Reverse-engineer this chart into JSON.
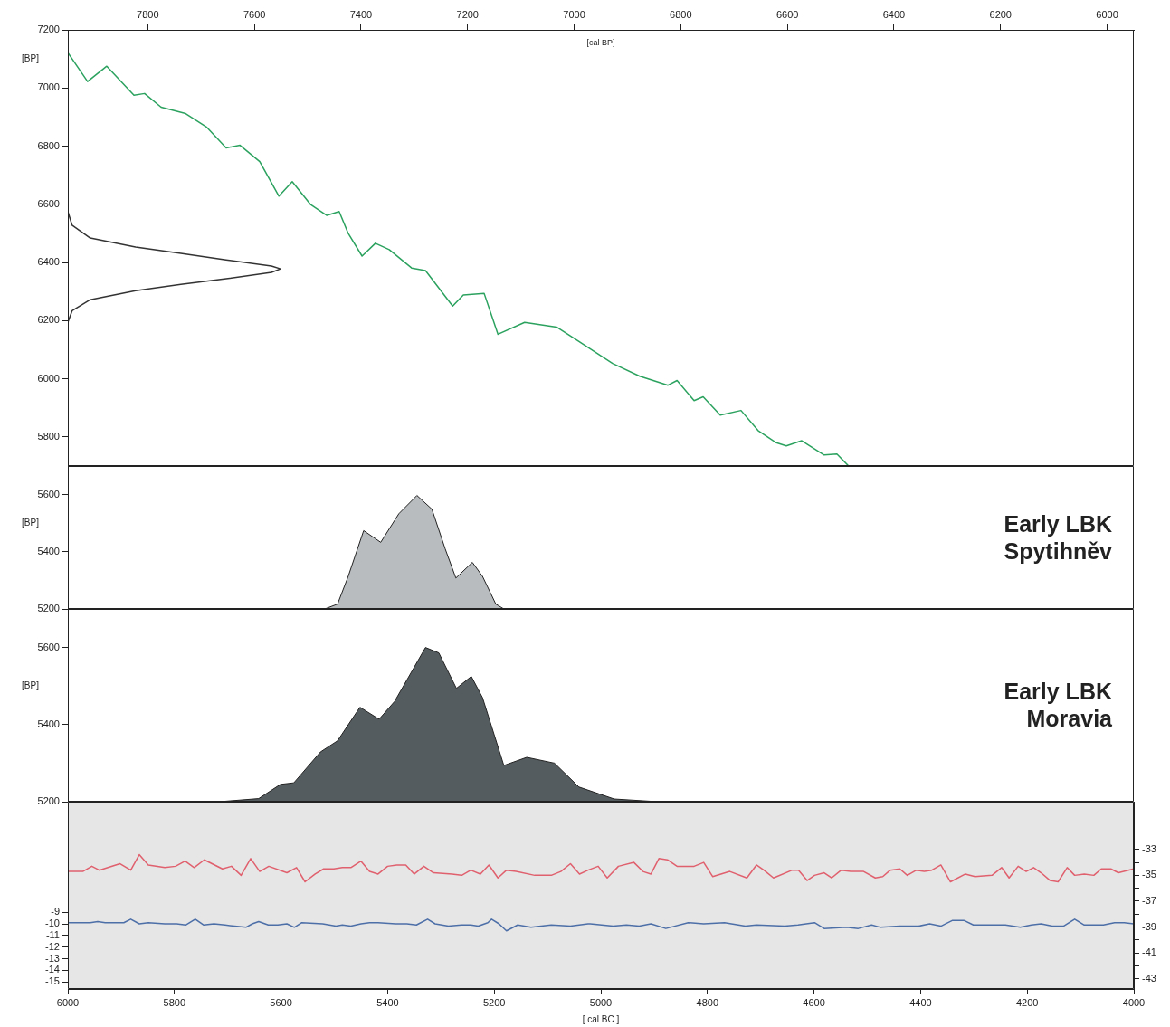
{
  "chart_data": [
    {
      "type": "line",
      "ylabel": "[BP]",
      "x2label": "[cal BP]",
      "xlim": [
        6000,
        4000
      ],
      "x2lim": [
        7950,
        5950
      ],
      "x2ticks": [
        7800,
        7600,
        7400,
        7200,
        7000,
        6800,
        6600,
        6400,
        6200,
        6000
      ],
      "ylim": [
        5700,
        7200
      ],
      "yticks": [
        5800,
        6000,
        6200,
        6400,
        6600,
        6800,
        7000,
        7200
      ],
      "tick_labels": "y",
      "legend": false,
      "grid": false,
      "series": [
        {
          "color": "#2ca25f",
          "x": [
            6000,
            5963,
            5927,
            5876,
            5856,
            5825,
            5779,
            5740,
            5703,
            5677,
            5640,
            5604,
            5579,
            5545,
            5514,
            5491,
            5474,
            5448,
            5423,
            5397,
            5355,
            5329,
            5278,
            5258,
            5219,
            5193,
            5143,
            5083,
            5041,
            4978,
            4927,
            4874,
            4857,
            4825,
            4808,
            4776,
            4737,
            4705,
            4672,
            4652,
            4623,
            4581,
            4557,
            4535
          ],
          "values": [
            7122,
            7022,
            7075,
            6975,
            6981,
            6934,
            6912,
            6866,
            6794,
            6803,
            6747,
            6628,
            6678,
            6600,
            6562,
            6575,
            6500,
            6422,
            6466,
            6444,
            6381,
            6372,
            6250,
            6288,
            6294,
            6153,
            6194,
            6178,
            6128,
            6053,
            6009,
            5978,
            5994,
            5925,
            5938,
            5875,
            5891,
            5822,
            5781,
            5769,
            5787,
            5738,
            5741,
            5700
          ]
        },
        {
          "type": "line",
          "color": "#333333",
          "x": [
            6000,
            5992,
            5958,
            5873,
            5788,
            5703,
            5618,
            5601,
            5618,
            5703,
            5788,
            5873,
            5958,
            5992,
            6000
          ],
          "values": [
            6575,
            6528,
            6484,
            6453,
            6431,
            6409,
            6388,
            6378,
            6366,
            6344,
            6325,
            6303,
            6272,
            6234,
            6194
          ]
        }
      ]
    },
    {
      "type": "area",
      "ylabel": "[BP]",
      "xlim": [
        6000,
        4000
      ],
      "ylim": [
        5200,
        5700
      ],
      "yticks": [
        5200,
        5400,
        5600
      ],
      "tick_labels": "y",
      "legend": false,
      "grid": false,
      "annotations": [
        "Early LBK\nSpytihněv"
      ],
      "series": [
        {
          "color": "#b9bcbf",
          "x": [
            5518,
            5494,
            5474,
            5445,
            5413,
            5379,
            5345,
            5317,
            5292,
            5272,
            5241,
            5222,
            5197,
            5182
          ],
          "values": [
            5200,
            5217,
            5314,
            5474,
            5433,
            5533,
            5597,
            5549,
            5410,
            5308,
            5363,
            5314,
            5217,
            5200
          ]
        }
      ]
    },
    {
      "type": "area",
      "ylabel": "[BP]",
      "xlim": [
        6000,
        4000
      ],
      "ylim": [
        5200,
        5700
      ],
      "yticks": [
        5200,
        5400,
        5600
      ],
      "tick_labels": "y",
      "legend": false,
      "grid": false,
      "annotations": [
        "Early LBK\nMoravia"
      ],
      "series": [
        {
          "color": "#555c60",
          "x": [
            5716,
            5642,
            5601,
            5576,
            5526,
            5494,
            5452,
            5416,
            5387,
            5329,
            5304,
            5271,
            5243,
            5222,
            5182,
            5139,
            5087,
            5041,
            4975,
            4893
          ],
          "values": [
            5200,
            5208,
            5245,
            5249,
            5329,
            5358,
            5445,
            5414,
            5460,
            5600,
            5586,
            5494,
            5525,
            5470,
            5294,
            5315,
            5300,
            5238,
            5207,
            5200
          ]
        }
      ]
    },
    {
      "type": "line",
      "xlabel": "[ cal BC ]",
      "xlim": [
        6000,
        4000
      ],
      "xticks": [
        6000,
        5800,
        5600,
        5400,
        5200,
        5000,
        4800,
        4600,
        4400,
        4200,
        4000
      ],
      "ylim": [
        -15.6,
        0.5
      ],
      "yticks": [
        -15,
        -14,
        -13,
        -12,
        -11,
        -10,
        -9
      ],
      "y2lim": [
        -43.8,
        -29.3
      ],
      "y2ticks": [
        -43,
        {
          "value": -42,
          "label": null
        },
        -41,
        {
          "value": -40,
          "label": null
        },
        -39,
        {
          "value": -38,
          "label": null
        },
        -37,
        {
          "value": -36,
          "label": null
        },
        -35,
        {
          "value": -34,
          "label": null
        },
        -33
      ],
      "legend": false,
      "grid": false,
      "series": [
        {
          "color": "#e0606e",
          "axis": "y2",
          "x": [
            6000,
            5972,
            5955,
            5941,
            5902,
            5882,
            5866,
            5849,
            5818,
            5798,
            5780,
            5763,
            5744,
            5710,
            5693,
            5675,
            5657,
            5640,
            5623,
            5589,
            5571,
            5555,
            5536,
            5520,
            5501,
            5485,
            5469,
            5450,
            5434,
            5418,
            5400,
            5383,
            5366,
            5350,
            5332,
            5314,
            5279,
            5261,
            5244,
            5226,
            5210,
            5193,
            5177,
            5159,
            5124,
            5093,
            5075,
            5057,
            5040,
            5024,
            5005,
            4988,
            4967,
            4938,
            4921,
            4906,
            4891,
            4875,
            4857,
            4825,
            4807,
            4790,
            4758,
            4726,
            4708,
            4694,
            4676,
            4641,
            4629,
            4613,
            4599,
            4581,
            4567,
            4549,
            4531,
            4507,
            4485,
            4471,
            4457,
            4439,
            4425,
            4408,
            4393,
            4379,
            4362,
            4344,
            4316,
            4298,
            4266,
            4248,
            4234,
            4217,
            4202,
            4188,
            4174,
            4157,
            4142,
            4125,
            4111,
            4093,
            4075,
            4061,
            4043,
            4029,
            4000
          ],
          "values": [
            -34.7,
            -34.7,
            -34.3,
            -34.6,
            -34.1,
            -34.6,
            -33.4,
            -34.2,
            -34.4,
            -34.3,
            -33.9,
            -34.4,
            -33.8,
            -34.5,
            -34.3,
            -35.0,
            -33.7,
            -34.7,
            -34.3,
            -34.8,
            -34.4,
            -35.5,
            -34.9,
            -34.5,
            -34.5,
            -34.4,
            -34.4,
            -33.9,
            -34.7,
            -34.9,
            -34.3,
            -34.2,
            -34.2,
            -34.9,
            -34.3,
            -34.8,
            -34.9,
            -35.0,
            -34.6,
            -34.9,
            -34.2,
            -35.2,
            -34.6,
            -34.7,
            -35.0,
            -35.0,
            -34.7,
            -34.1,
            -34.9,
            -34.6,
            -34.3,
            -35.2,
            -34.3,
            -34.0,
            -34.7,
            -34.9,
            -33.7,
            -33.8,
            -34.3,
            -34.3,
            -34.0,
            -35.1,
            -34.7,
            -35.2,
            -34.2,
            -34.6,
            -35.2,
            -34.6,
            -34.6,
            -35.4,
            -35.0,
            -34.8,
            -35.2,
            -34.6,
            -34.7,
            -34.7,
            -35.2,
            -35.1,
            -34.6,
            -34.5,
            -35.0,
            -34.6,
            -34.7,
            -34.6,
            -34.2,
            -35.5,
            -34.9,
            -35.1,
            -35.0,
            -34.4,
            -35.2,
            -34.3,
            -34.7,
            -34.4,
            -34.8,
            -35.4,
            -35.5,
            -34.4,
            -35.0,
            -34.9,
            -35.0,
            -34.5,
            -34.5,
            -34.8,
            -34.5
          ]
        },
        {
          "color": "#4d6fa8",
          "x": [
            6000,
            5958,
            5944,
            5930,
            5895,
            5882,
            5866,
            5849,
            5818,
            5796,
            5779,
            5761,
            5745,
            5726,
            5705,
            5687,
            5666,
            5654,
            5642,
            5624,
            5606,
            5589,
            5575,
            5561,
            5522,
            5497,
            5485,
            5469,
            5450,
            5434,
            5418,
            5385,
            5364,
            5346,
            5325,
            5311,
            5286,
            5261,
            5244,
            5230,
            5212,
            5205,
            5191,
            5177,
            5156,
            5131,
            5093,
            5057,
            5024,
            5020,
            4977,
            4952,
            4928,
            4906,
            4878,
            4836,
            4807,
            4768,
            4729,
            4708,
            4655,
            4630,
            4599,
            4581,
            4539,
            4517,
            4492,
            4475,
            4439,
            4404,
            4383,
            4362,
            4340,
            4319,
            4301,
            4241,
            4213,
            4192,
            4174,
            4153,
            4132,
            4111,
            4093,
            4057,
            4036,
            4018,
            4000
          ],
          "values": [
            -9.9,
            -9.9,
            -9.8,
            -9.9,
            -9.9,
            -9.6,
            -10.0,
            -9.9,
            -10.0,
            -10.0,
            -10.1,
            -9.6,
            -10.1,
            -10.0,
            -10.1,
            -10.2,
            -10.3,
            -10.0,
            -9.8,
            -10.1,
            -10.1,
            -10.0,
            -10.3,
            -9.9,
            -10.0,
            -10.2,
            -10.1,
            -10.2,
            -10.0,
            -9.9,
            -9.9,
            -10.0,
            -10.0,
            -10.1,
            -9.6,
            -10.0,
            -10.2,
            -10.1,
            -10.1,
            -10.2,
            -9.9,
            -9.6,
            -10.0,
            -10.6,
            -10.1,
            -10.3,
            -10.1,
            -10.2,
            -10.0,
            -10.0,
            -10.2,
            -10.1,
            -10.2,
            -10.0,
            -10.4,
            -9.9,
            -10.0,
            -9.9,
            -10.2,
            -10.1,
            -10.2,
            -10.1,
            -9.9,
            -10.4,
            -10.3,
            -10.4,
            -10.1,
            -10.3,
            -10.2,
            -10.2,
            -10.0,
            -10.2,
            -9.7,
            -9.7,
            -10.1,
            -10.1,
            -10.3,
            -10.1,
            -10.0,
            -10.2,
            -10.2,
            -9.6,
            -10.1,
            -10.1,
            -9.9,
            -9.9,
            -10.0
          ]
        }
      ]
    }
  ]
}
